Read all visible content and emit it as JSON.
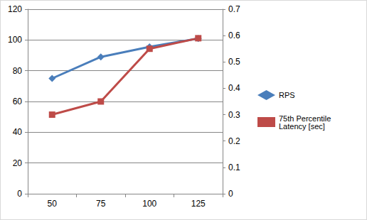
{
  "chart_data": {
    "type": "line",
    "categories": [
      50,
      75,
      100,
      125
    ],
    "series": [
      {
        "name": "RPS",
        "color": "#4a7ebb",
        "marker": "diamond",
        "values": [
          75,
          89,
          95.5,
          101
        ]
      },
      {
        "name": "75th Percentile Latency [sec]",
        "color": "#be4b48",
        "marker": "square",
        "axis": "y2",
        "values": [
          0.3,
          0.35,
          0.55,
          0.59
        ]
      }
    ],
    "ylim": [
      0,
      120
    ],
    "yticks": [
      0,
      20,
      40,
      60,
      80,
      100,
      120
    ],
    "y2lim": [
      0,
      0.7
    ],
    "y2ticks": [
      0,
      0.1,
      0.2,
      0.3,
      0.4,
      0.5,
      0.6,
      0.7
    ],
    "grid": true,
    "legend": "right"
  }
}
